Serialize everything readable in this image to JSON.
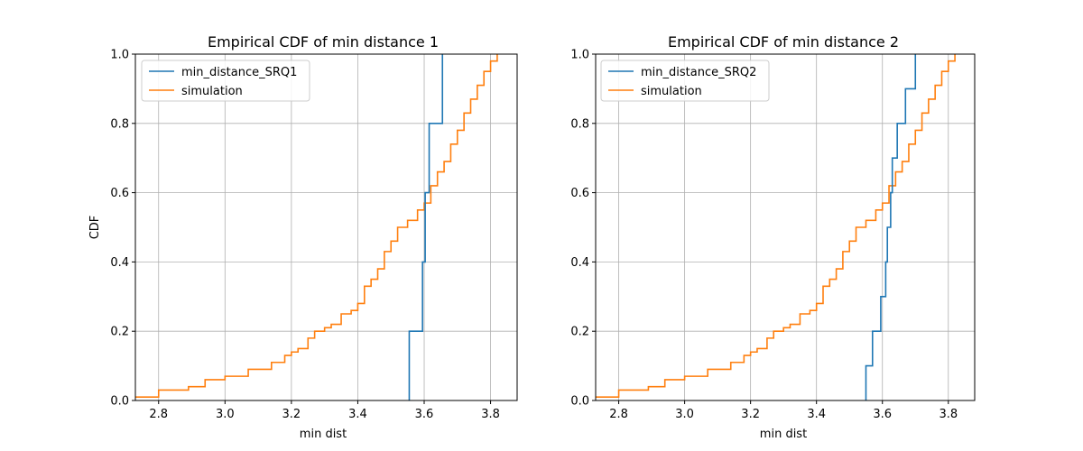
{
  "chart_data": [
    {
      "type": "line",
      "step": true,
      "title": "Empirical CDF of min distance 1",
      "xlabel": "min dist",
      "ylabel": "CDF",
      "xlim": [
        2.73,
        3.88
      ],
      "ylim": [
        0,
        1.0
      ],
      "xticks": [
        "2.8",
        "3.0",
        "3.2",
        "3.4",
        "3.6",
        "3.8"
      ],
      "yticks": [
        "0.0",
        "0.2",
        "0.4",
        "0.6",
        "0.8",
        "1.0"
      ],
      "grid": true,
      "legend": "upper-left",
      "series": [
        {
          "name": "min_distance_SRQ1",
          "color": "#1f77b4",
          "points": [
            [
              3.555,
              0
            ],
            [
              3.555,
              0.2
            ],
            [
              3.595,
              0.2
            ],
            [
              3.595,
              0.4
            ],
            [
              3.603,
              0.4
            ],
            [
              3.603,
              0.6
            ],
            [
              3.615,
              0.6
            ],
            [
              3.615,
              0.8
            ],
            [
              3.655,
              0.8
            ],
            [
              3.655,
              1.0
            ]
          ]
        },
        {
          "name": "simulation",
          "color": "#ff7f0e",
          "points": [
            [
              2.73,
              0.01
            ],
            [
              2.79,
              0.01
            ],
            [
              2.8,
              0.03
            ],
            [
              2.88,
              0.03
            ],
            [
              2.89,
              0.04
            ],
            [
              2.93,
              0.04
            ],
            [
              2.94,
              0.06
            ],
            [
              2.99,
              0.06
            ],
            [
              3.0,
              0.07
            ],
            [
              3.06,
              0.07
            ],
            [
              3.07,
              0.09
            ],
            [
              3.12,
              0.09
            ],
            [
              3.14,
              0.11
            ],
            [
              3.18,
              0.13
            ],
            [
              3.2,
              0.14
            ],
            [
              3.22,
              0.15
            ],
            [
              3.25,
              0.18
            ],
            [
              3.27,
              0.2
            ],
            [
              3.3,
              0.21
            ],
            [
              3.32,
              0.22
            ],
            [
              3.35,
              0.25
            ],
            [
              3.38,
              0.26
            ],
            [
              3.4,
              0.28
            ],
            [
              3.42,
              0.33
            ],
            [
              3.44,
              0.35
            ],
            [
              3.46,
              0.38
            ],
            [
              3.48,
              0.43
            ],
            [
              3.5,
              0.46
            ],
            [
              3.52,
              0.5
            ],
            [
              3.55,
              0.52
            ],
            [
              3.58,
              0.55
            ],
            [
              3.6,
              0.57
            ],
            [
              3.62,
              0.62
            ],
            [
              3.64,
              0.66
            ],
            [
              3.66,
              0.69
            ],
            [
              3.68,
              0.74
            ],
            [
              3.7,
              0.78
            ],
            [
              3.72,
              0.83
            ],
            [
              3.74,
              0.87
            ],
            [
              3.76,
              0.91
            ],
            [
              3.78,
              0.95
            ],
            [
              3.8,
              0.98
            ],
            [
              3.82,
              1.0
            ]
          ]
        }
      ]
    },
    {
      "type": "line",
      "step": true,
      "title": "Empirical CDF of min distance 2",
      "xlabel": "min dist",
      "ylabel": "",
      "xlim": [
        2.73,
        3.88
      ],
      "ylim": [
        0,
        1.0
      ],
      "xticks": [
        "2.8",
        "3.0",
        "3.2",
        "3.4",
        "3.6",
        "3.8"
      ],
      "yticks": [
        "0.0",
        "0.2",
        "0.4",
        "0.6",
        "0.8",
        "1.0"
      ],
      "grid": true,
      "legend": "upper-left",
      "series": [
        {
          "name": "min_distance_SRQ2",
          "color": "#1f77b4",
          "points": [
            [
              3.55,
              0
            ],
            [
              3.55,
              0.1
            ],
            [
              3.57,
              0.1
            ],
            [
              3.57,
              0.2
            ],
            [
              3.595,
              0.2
            ],
            [
              3.595,
              0.3
            ],
            [
              3.61,
              0.3
            ],
            [
              3.61,
              0.4
            ],
            [
              3.615,
              0.4
            ],
            [
              3.615,
              0.5
            ],
            [
              3.625,
              0.5
            ],
            [
              3.625,
              0.6
            ],
            [
              3.63,
              0.6
            ],
            [
              3.63,
              0.7
            ],
            [
              3.645,
              0.7
            ],
            [
              3.645,
              0.8
            ],
            [
              3.67,
              0.8
            ],
            [
              3.67,
              0.9
            ],
            [
              3.7,
              0.9
            ],
            [
              3.7,
              1.0
            ]
          ]
        },
        {
          "name": "simulation",
          "color": "#ff7f0e",
          "points": [
            [
              2.73,
              0.01
            ],
            [
              2.79,
              0.01
            ],
            [
              2.8,
              0.03
            ],
            [
              2.88,
              0.03
            ],
            [
              2.89,
              0.04
            ],
            [
              2.93,
              0.04
            ],
            [
              2.94,
              0.06
            ],
            [
              2.99,
              0.06
            ],
            [
              3.0,
              0.07
            ],
            [
              3.06,
              0.07
            ],
            [
              3.07,
              0.09
            ],
            [
              3.12,
              0.09
            ],
            [
              3.14,
              0.11
            ],
            [
              3.18,
              0.13
            ],
            [
              3.2,
              0.14
            ],
            [
              3.22,
              0.15
            ],
            [
              3.25,
              0.18
            ],
            [
              3.27,
              0.2
            ],
            [
              3.3,
              0.21
            ],
            [
              3.32,
              0.22
            ],
            [
              3.35,
              0.25
            ],
            [
              3.38,
              0.26
            ],
            [
              3.4,
              0.28
            ],
            [
              3.42,
              0.33
            ],
            [
              3.44,
              0.35
            ],
            [
              3.46,
              0.38
            ],
            [
              3.48,
              0.43
            ],
            [
              3.5,
              0.46
            ],
            [
              3.52,
              0.5
            ],
            [
              3.55,
              0.52
            ],
            [
              3.58,
              0.55
            ],
            [
              3.6,
              0.57
            ],
            [
              3.62,
              0.62
            ],
            [
              3.64,
              0.66
            ],
            [
              3.66,
              0.69
            ],
            [
              3.68,
              0.74
            ],
            [
              3.7,
              0.78
            ],
            [
              3.72,
              0.83
            ],
            [
              3.74,
              0.87
            ],
            [
              3.76,
              0.91
            ],
            [
              3.78,
              0.95
            ],
            [
              3.8,
              0.98
            ],
            [
              3.82,
              1.0
            ]
          ]
        }
      ]
    }
  ]
}
